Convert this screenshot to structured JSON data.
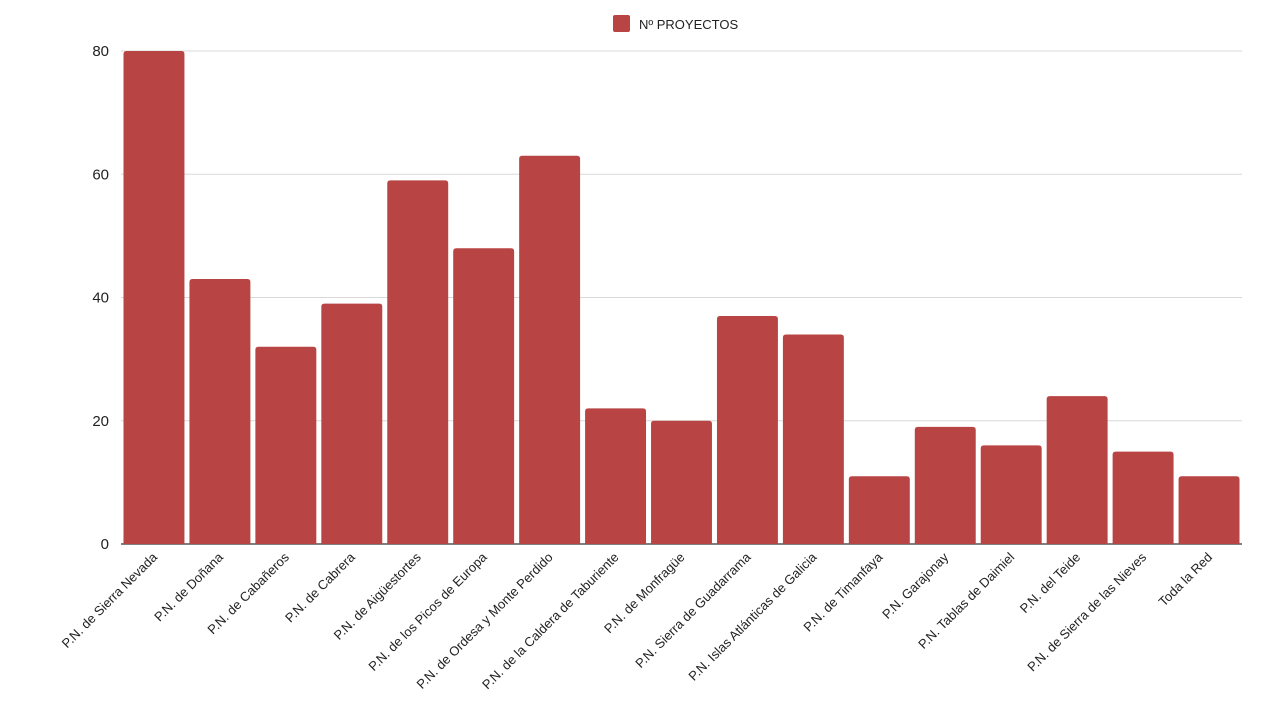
{
  "chart_data": {
    "type": "bar",
    "title": "",
    "xlabel": "",
    "ylabel": "",
    "ylim": [
      0,
      80
    ],
    "yticks": [
      0,
      20,
      40,
      60,
      80
    ],
    "grid": true,
    "legend_position": "top-center",
    "categories": [
      "P.N. de Sierra Nevada",
      "P.N. de Doñana",
      "P.N. de Cabañeros",
      "P.N. de Cabrera",
      "P.N. de Aigüestortes",
      "P.N. de los Picos de Europa",
      "P.N. de Ordesa y Monte Perdido",
      "P.N. de la Caldera de Taburiente",
      "P.N. de Monfragüe",
      "P.N. Sierra de Guadarrama",
      "P.N. Islas Atlánticas de Galicia",
      "P.N. de Timanfaya",
      "P.N. Garajonay",
      "P.N. Tablas de Daimiel",
      "P.N. del Teide",
      "P.N. de Sierra de las Nieves",
      "Toda la Red"
    ],
    "series": [
      {
        "name": "Nº PROYECTOS",
        "color": "#b94444",
        "values": [
          80,
          43,
          32,
          39,
          59,
          48,
          63,
          22,
          20,
          37,
          34,
          11,
          19,
          16,
          24,
          15,
          11
        ]
      }
    ]
  }
}
